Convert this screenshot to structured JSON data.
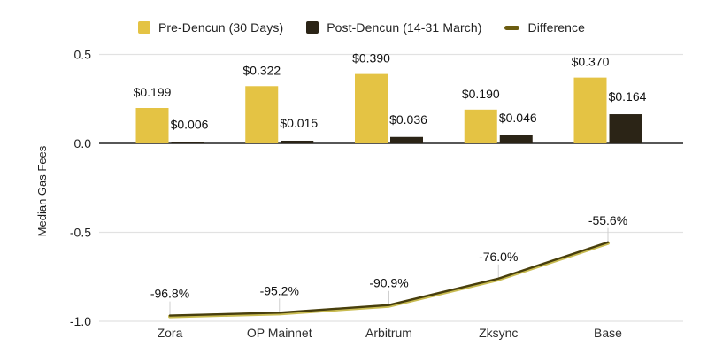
{
  "legend": [
    {
      "label": "Pre-Dencun (30 Days)",
      "swatch": "square",
      "color": "#e4c344"
    },
    {
      "label": "Post-Dencun (14-31 March)",
      "swatch": "square",
      "color": "#2b2416"
    },
    {
      "label": "Difference",
      "swatch": "dash",
      "color": "#6b5c10"
    }
  ],
  "chart_data": {
    "type": "bar+line",
    "title": "",
    "categories": [
      "Zora",
      "OP Mainnet",
      "Arbitrum",
      "Zksync",
      "Base"
    ],
    "series": [
      {
        "name": "Pre-Dencun (30 Days)",
        "type": "bar",
        "color": "#e4c344",
        "values": [
          0.199,
          0.322,
          0.39,
          0.19,
          0.37
        ],
        "labels": [
          "$0.199",
          "$0.322",
          "$0.390",
          "$0.190",
          "$0.370"
        ]
      },
      {
        "name": "Post-Dencun (14-31 March)",
        "type": "bar",
        "color": "#2b2416",
        "values": [
          0.006,
          0.015,
          0.036,
          0.046,
          0.164
        ],
        "labels": [
          "$0.006",
          "$0.015",
          "$0.036",
          "$0.046",
          "$0.164"
        ]
      },
      {
        "name": "Difference",
        "type": "line",
        "color": "#473e0d",
        "edge_color": "#c9bc52",
        "values": [
          -0.968,
          -0.952,
          -0.909,
          -0.76,
          -0.556
        ],
        "labels": [
          "-96.8%",
          "-95.2%",
          "-90.9%",
          "-76.0%",
          "-55.6%"
        ]
      }
    ],
    "xlabel": "",
    "ylabel": "Median Gas Fees",
    "ylim": [
      -1.0,
      0.5
    ],
    "yticks": [
      0.5,
      0.0,
      -0.5,
      -1.0
    ],
    "ytick_labels": [
      "0.5",
      "0.0",
      "-0.5",
      "-1.0"
    ],
    "grid": true,
    "legend_position": "top",
    "colors": {
      "grid_line": "#e2e2e2",
      "zero_line": "#3f3f3f",
      "tick_label": "#1f1f1f",
      "category_label": "#2e2e2e",
      "value_label": "#111111",
      "axis_title": "#1a1a1a",
      "leader_line": "#cfcfcf"
    }
  }
}
